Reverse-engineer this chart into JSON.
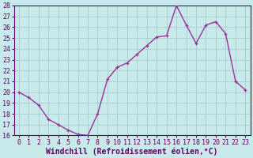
{
  "x": [
    0,
    1,
    2,
    3,
    4,
    5,
    6,
    7,
    8,
    9,
    10,
    11,
    12,
    13,
    14,
    15,
    16,
    17,
    18,
    19,
    20,
    21,
    22,
    23
  ],
  "y": [
    20.0,
    19.5,
    18.8,
    17.5,
    17.0,
    16.5,
    16.1,
    16.0,
    18.0,
    21.2,
    22.3,
    22.7,
    23.5,
    24.3,
    25.1,
    25.2,
    28.0,
    26.2,
    24.5,
    26.2,
    26.5,
    25.4,
    21.0,
    20.2
  ],
  "line_color": "#993399",
  "marker": "P",
  "marker_color": "#993399",
  "bg_color": "#c8eaea",
  "grid_color": "#a8cccc",
  "xlabel": "Windchill (Refroidissement éolien,°C)",
  "ylim": [
    16,
    28
  ],
  "xlim": [
    -0.5,
    23.5
  ],
  "yticks": [
    16,
    17,
    18,
    19,
    20,
    21,
    22,
    23,
    24,
    25,
    26,
    27,
    28
  ],
  "xticks": [
    0,
    1,
    2,
    3,
    4,
    5,
    6,
    7,
    8,
    9,
    10,
    11,
    12,
    13,
    14,
    15,
    16,
    17,
    18,
    19,
    20,
    21,
    22,
    23
  ],
  "xlabel_fontsize": 7,
  "tick_fontsize": 6,
  "line_width": 1.0,
  "marker_size": 3.0,
  "top_spine": true,
  "right_spine": true
}
